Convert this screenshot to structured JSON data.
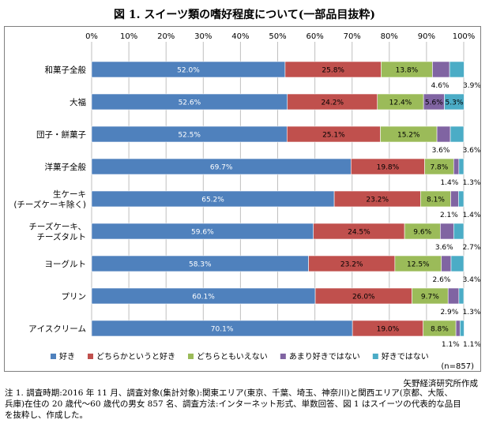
{
  "title": "図 1. スイーツ類の嗜好程度について(一部品目抜粋)",
  "source": "矢野経済研究所作成",
  "note": [
    "注 1. 調査時期:2016 年 11 月、調査対象(集計対象):関東エリア(東京、千葉、埼玉、神奈川)と関西エリア(京都、大阪、",
    "兵庫)在住の 20 歳代〜60 歳代の男女 857 名、調査方法:インターネット形式、単数回答、図 1 はスイーツの代表的な品目",
    "を抜粋し、作成した。"
  ],
  "chart_data": {
    "type": "stacked-bar-horizontal",
    "x_ticks": [
      "0%",
      "10%",
      "20%",
      "30%",
      "40%",
      "50%",
      "60%",
      "70%",
      "80%",
      "90%",
      "100%"
    ],
    "xlim": [
      0,
      100
    ],
    "grid": true,
    "legend_position": "bottom",
    "sample_note": "(n=857)",
    "categories": [
      [
        "和菓子全般"
      ],
      [
        "大福"
      ],
      [
        "団子・餅菓子"
      ],
      [
        "洋菓子全般"
      ],
      [
        "生ケーキ",
        "(チーズケーキ除く)"
      ],
      [
        "チーズケーキ、",
        "チーズタルト"
      ],
      [
        "ヨーグルト"
      ],
      [
        "プリン"
      ],
      [
        "アイスクリーム"
      ]
    ],
    "series": [
      {
        "name": "好き",
        "color": "#4f81bd",
        "values": [
          52.0,
          52.6,
          52.5,
          69.7,
          65.2,
          59.6,
          58.3,
          60.1,
          70.1
        ]
      },
      {
        "name": "どちらかというと好き",
        "color": "#c0504d",
        "values": [
          25.8,
          24.2,
          25.1,
          19.8,
          23.2,
          24.5,
          23.2,
          26.0,
          19.0
        ]
      },
      {
        "name": "どちらともいえない",
        "color": "#9bbb59",
        "values": [
          13.8,
          12.4,
          15.2,
          7.8,
          8.1,
          9.6,
          12.5,
          9.7,
          8.8
        ]
      },
      {
        "name": "あまり好きではない",
        "color": "#8064a2",
        "values": [
          4.6,
          5.6,
          3.6,
          1.4,
          2.1,
          3.6,
          2.6,
          2.9,
          1.1
        ]
      },
      {
        "name": "好きではない",
        "color": "#4bacc6",
        "values": [
          3.9,
          5.3,
          3.6,
          1.3,
          1.4,
          2.7,
          3.4,
          1.3,
          1.1
        ]
      }
    ],
    "data_labels": [
      [
        "52.0%",
        "25.8%",
        "13.8%",
        "4.6%",
        "3.9%"
      ],
      [
        "52.6%",
        "24.2%",
        "12.4%",
        "5.6%",
        "5.3%"
      ],
      [
        "52.5%",
        "25.1%",
        "15.2%",
        "3.6%",
        "3.6%"
      ],
      [
        "69.7%",
        "19.8%",
        "7.8%",
        "1.4%",
        "1.3%"
      ],
      [
        "65.2%",
        "23.2%",
        "8.1%",
        "2.1%",
        "1.4%"
      ],
      [
        "59.6%",
        "24.5%",
        "9.6%",
        "3.6%",
        "2.7%"
      ],
      [
        "58.3%",
        "23.2%",
        "12.5%",
        "2.6%",
        "3.4%"
      ],
      [
        "60.1%",
        "26.0%",
        "9.7%",
        "2.9%",
        "1.3%"
      ],
      [
        "70.1%",
        "19.0%",
        "8.8%",
        "1.1%",
        "1.1%"
      ]
    ]
  }
}
